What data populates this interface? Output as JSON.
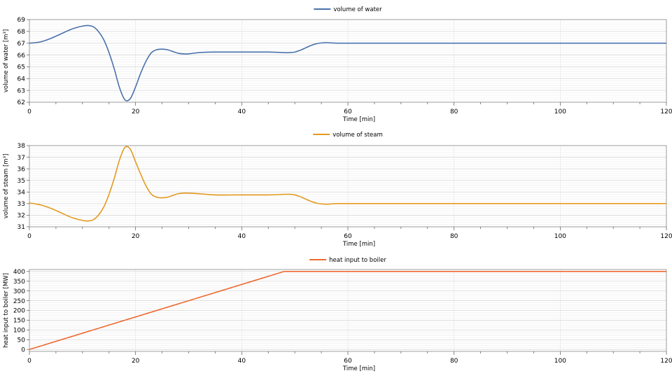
{
  "chart_data": [
    {
      "type": "line",
      "xlabel": "Time [min]",
      "ylabel": "volume of water [m³]",
      "xlim": [
        0,
        120
      ],
      "ylim": [
        62,
        69
      ],
      "x_ticks": [
        0,
        20,
        40,
        60,
        80,
        100,
        120
      ],
      "y_ticks": [
        62,
        63,
        64,
        65,
        66,
        67,
        68,
        69
      ],
      "grid": true,
      "legend_position": "top-center",
      "series": [
        {
          "name": "volume of water",
          "color": "#4a72ac",
          "x": [
            0,
            2,
            4,
            6,
            8,
            10,
            11,
            12,
            13,
            14,
            15,
            16,
            17,
            18,
            19,
            20,
            21,
            22,
            23,
            24,
            25,
            26,
            27,
            28,
            29,
            30,
            32,
            35,
            40,
            45,
            48,
            49,
            50,
            51,
            52,
            53,
            54,
            55,
            56,
            57,
            58,
            60,
            62,
            65,
            70,
            80,
            100,
            120
          ],
          "y": [
            67.0,
            67.1,
            67.4,
            67.8,
            68.2,
            68.45,
            68.5,
            68.4,
            68.0,
            67.3,
            66.2,
            64.8,
            63.2,
            62.2,
            62.3,
            63.3,
            64.5,
            65.5,
            66.2,
            66.45,
            66.5,
            66.45,
            66.3,
            66.15,
            66.1,
            66.1,
            66.2,
            66.25,
            66.25,
            66.25,
            66.2,
            66.2,
            66.25,
            66.4,
            66.6,
            66.8,
            66.95,
            67.02,
            67.05,
            67.02,
            67.0,
            67.0,
            67.0,
            67.0,
            67.0,
            67.0,
            67.0,
            67.0
          ]
        }
      ]
    },
    {
      "type": "line",
      "xlabel": "Time [min]",
      "ylabel": "volume of steam [m³]",
      "xlim": [
        0,
        120
      ],
      "ylim": [
        31,
        38
      ],
      "x_ticks": [
        0,
        20,
        40,
        60,
        80,
        100,
        120
      ],
      "y_ticks": [
        31,
        32,
        33,
        34,
        35,
        36,
        37,
        38
      ],
      "grid": true,
      "legend_position": "top-center",
      "series": [
        {
          "name": "volume of steam",
          "color": "#e39a1f",
          "x": [
            0,
            2,
            4,
            6,
            8,
            10,
            11,
            12,
            13,
            14,
            15,
            16,
            17,
            18,
            19,
            20,
            21,
            22,
            23,
            24,
            25,
            26,
            27,
            28,
            29,
            30,
            32,
            35,
            40,
            45,
            48,
            49,
            50,
            51,
            52,
            53,
            54,
            55,
            56,
            57,
            58,
            60,
            62,
            65,
            70,
            80,
            100,
            120
          ],
          "y": [
            33.05,
            32.9,
            32.6,
            32.2,
            31.8,
            31.55,
            31.5,
            31.6,
            32.0,
            32.7,
            33.8,
            35.2,
            36.8,
            37.85,
            37.7,
            36.6,
            35.5,
            34.5,
            33.8,
            33.55,
            33.5,
            33.55,
            33.7,
            33.85,
            33.9,
            33.9,
            33.85,
            33.75,
            33.75,
            33.75,
            33.8,
            33.8,
            33.75,
            33.6,
            33.4,
            33.2,
            33.05,
            32.98,
            32.95,
            32.98,
            33.0,
            33.0,
            33.0,
            33.0,
            33.0,
            33.0,
            33.0,
            33.0
          ]
        }
      ]
    },
    {
      "type": "line",
      "xlabel": "Time [min]",
      "ylabel": "heat input to boiler [MW]",
      "xlim": [
        0,
        120
      ],
      "ylim": [
        -10,
        410
      ],
      "x_ticks": [
        0,
        20,
        40,
        60,
        80,
        100,
        120
      ],
      "y_ticks": [
        0,
        50,
        100,
        150,
        200,
        250,
        300,
        350,
        400
      ],
      "grid": true,
      "legend_position": "top-center",
      "series": [
        {
          "name": "heat input to boiler",
          "color": "#ee6a30",
          "x": [
            0,
            48,
            120
          ],
          "y": [
            0,
            400,
            400
          ]
        }
      ]
    }
  ]
}
